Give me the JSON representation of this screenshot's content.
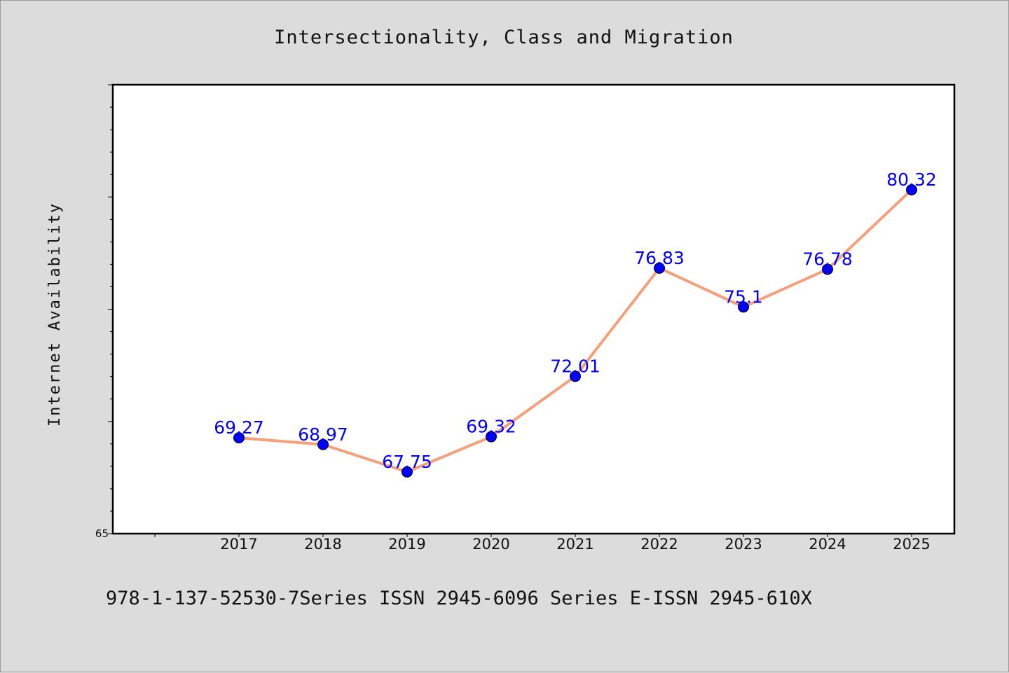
{
  "footer": "978-1-137-52530-7Series ISSN 2945-6096 Series E-ISSN 2945-610X",
  "chart_data": {
    "type": "line",
    "title": "Intersectionality, Class and Migration",
    "xlabel": "",
    "ylabel": "Internet Availability",
    "categories": [
      "2017",
      "2018",
      "2019",
      "2020",
      "2021",
      "2022",
      "2023",
      "2024",
      "2025"
    ],
    "series": [
      {
        "values": [
          69.27,
          68.97,
          67.75,
          69.32,
          72.01,
          76.83,
          75.1,
          76.78,
          80.32
        ],
        "labels": [
          "69.27",
          "68.97",
          "67.75",
          "69.32",
          "72.01",
          "76.83",
          "75.1",
          "76.78",
          "80.32"
        ]
      }
    ],
    "ylim": [
      65,
      85
    ],
    "y_tick_labels": [
      "65"
    ],
    "y_minor_tick_step": 1,
    "grid": false,
    "line_color": "#f4a07a",
    "marker_color": "#0000ff",
    "label_color": "#0000ff"
  }
}
